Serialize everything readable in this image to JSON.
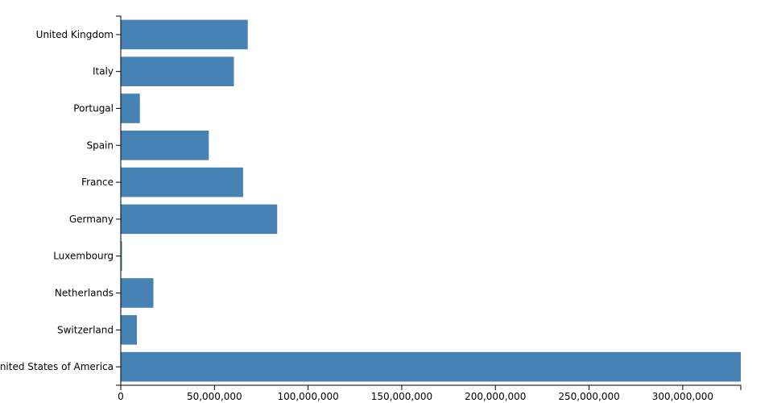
{
  "chart_data": {
    "type": "bar",
    "orientation": "horizontal",
    "title": "",
    "xlabel": "",
    "ylabel": "",
    "categories": [
      "United Kingdom",
      "Italy",
      "Portugal",
      "Spain",
      "France",
      "Germany",
      "Luxembourg",
      "Netherlands",
      "Switzerland",
      "United States of America"
    ],
    "values": [
      67800000,
      60400000,
      10200000,
      47000000,
      65300000,
      83500000,
      630000,
      17400000,
      8600000,
      331000000
    ],
    "xlim": [
      0,
      331000000
    ],
    "x_ticks": [
      0,
      50000000,
      100000000,
      150000000,
      200000000,
      250000000,
      300000000
    ],
    "x_tick_labels": [
      "0",
      "50,000,000",
      "100,000,000",
      "150,000,000",
      "200,000,000",
      "250,000,000",
      "300,000,000"
    ],
    "grid": false,
    "legend": "none",
    "bar_color": "#4682b4"
  }
}
